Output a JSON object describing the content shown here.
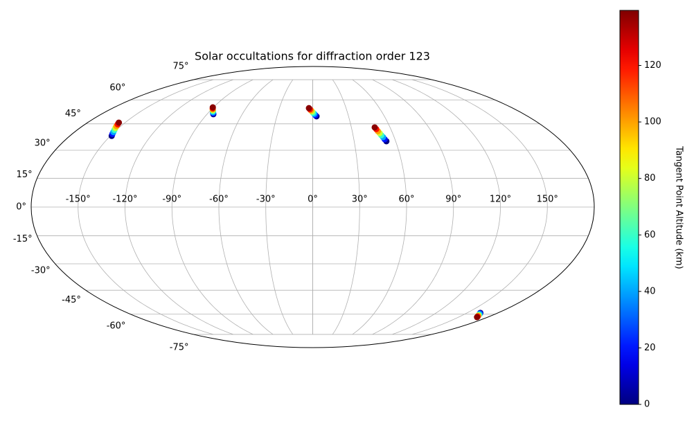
{
  "chart_data": {
    "type": "scatter",
    "projection": "mollweide",
    "title": "Solar occultations for diffraction order 123",
    "grid": true,
    "colormap": "jet",
    "colorbar_label": "Tangent Point Altitude (km)",
    "clim": [
      0,
      139.5
    ],
    "cticks": [
      0,
      20,
      40,
      60,
      80,
      100,
      120
    ],
    "xticks": [
      {
        "value": -150,
        "label": "-150°"
      },
      {
        "value": -120,
        "label": "-120°"
      },
      {
        "value": -90,
        "label": "-90°"
      },
      {
        "value": -60,
        "label": "-60°"
      },
      {
        "value": -30,
        "label": "-30°"
      },
      {
        "value": 0,
        "label": "0°"
      },
      {
        "value": 30,
        "label": "30°"
      },
      {
        "value": 60,
        "label": "60°"
      },
      {
        "value": 90,
        "label": "90°"
      },
      {
        "value": 120,
        "label": "120°"
      },
      {
        "value": 150,
        "label": "150°"
      }
    ],
    "yticks": [
      {
        "value": -75,
        "label": "-75°"
      },
      {
        "value": -60,
        "label": "-60°"
      },
      {
        "value": -45,
        "label": "-45°"
      },
      {
        "value": -30,
        "label": "-30°"
      },
      {
        "value": -15,
        "label": "-15°"
      },
      {
        "value": 0,
        "label": "0°"
      },
      {
        "value": 15,
        "label": "15°"
      },
      {
        "value": 30,
        "label": "30°"
      },
      {
        "value": 45,
        "label": "45°"
      },
      {
        "value": 60,
        "label": "60°"
      },
      {
        "value": 75,
        "label": "75°"
      }
    ],
    "lon": [
      -149,
      -149.9,
      -150.7,
      -151.6,
      -152.5,
      -153.4,
      -154.2,
      -155,
      -84.6,
      -85.5,
      -86.3,
      -87.2,
      -88.1,
      -89,
      -89.8,
      -90.6,
      3.2,
      2.2,
      1.3,
      0.3,
      -0.6,
      -1.6,
      -2.5,
      -3.4,
      53.3,
      52.5,
      51.8,
      51.0,
      50.3,
      49.5,
      48.8,
      48.1,
      162.8,
      163.7,
      164.6,
      165.5,
      166.4,
      167.3,
      168.2,
      169
    ],
    "lat": [
      38,
      39.1,
      40.2,
      41.4,
      42.5,
      43.6,
      44.7,
      45.7,
      50.8,
      51.4,
      52.0,
      52.7,
      53.3,
      53.9,
      54.5,
      55.1,
      49.5,
      50.2,
      51.0,
      51.7,
      52.5,
      53.2,
      53.9,
      54.6,
      35,
      36.1,
      37.3,
      38.4,
      39.6,
      40.7,
      41.9,
      42.9,
      -59.1,
      -59.5,
      -59.9,
      -60.4,
      -60.8,
      -61.2,
      -61.6,
      -62
    ],
    "altitude": [
      0,
      20,
      40,
      60,
      80,
      100,
      120,
      138,
      0,
      20,
      40,
      60,
      80,
      100,
      120,
      138,
      0,
      20,
      40,
      60,
      80,
      100,
      120,
      138,
      0,
      20,
      40,
      60,
      80,
      100,
      120,
      138,
      0,
      20,
      40,
      60,
      80,
      100,
      120,
      138
    ]
  }
}
